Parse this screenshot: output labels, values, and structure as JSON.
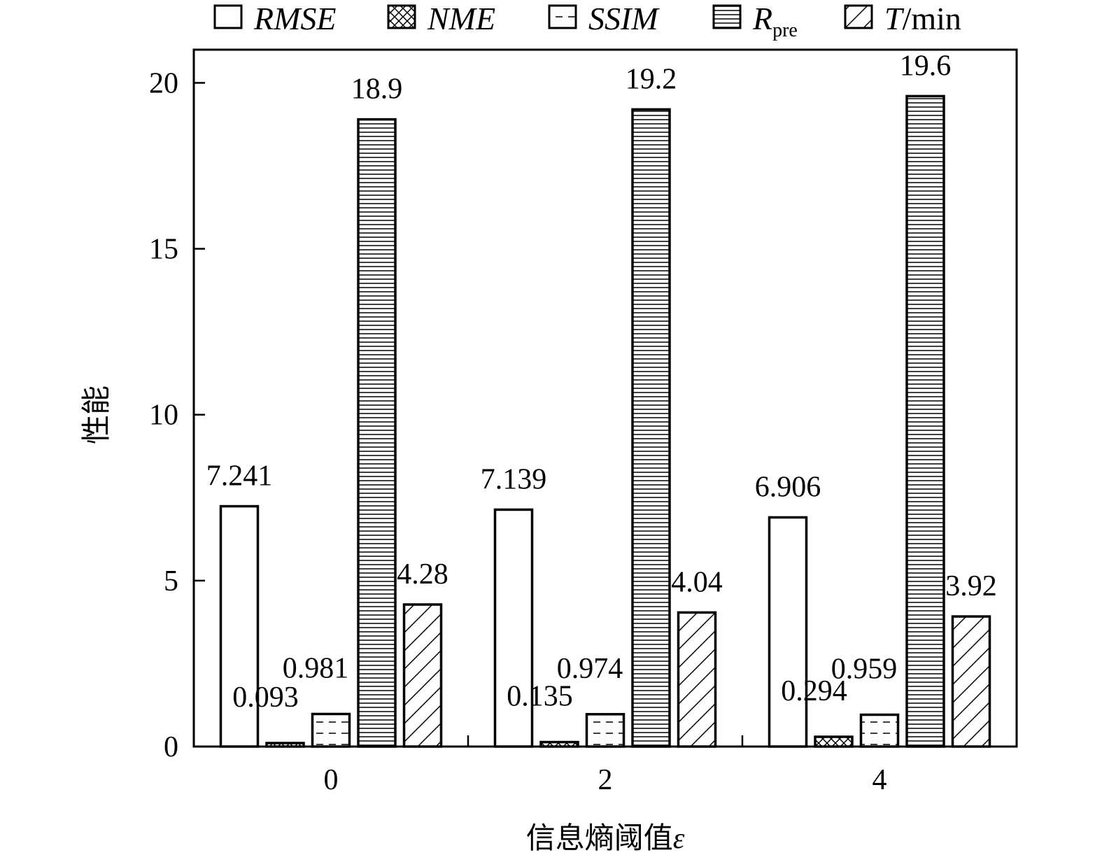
{
  "chart_data": {
    "type": "bar",
    "categories": [
      "0",
      "2",
      "4"
    ],
    "xlabel": "信息熵阈值",
    "xlabel_symbol": "ε",
    "ylabel": "性能",
    "ylim": [
      0,
      21
    ],
    "yticks": [
      0,
      5,
      10,
      15,
      20
    ],
    "grid": false,
    "legend_position": "top",
    "series": [
      {
        "name": "RMSE",
        "pattern": "none",
        "values": [
          7.241,
          7.139,
          6.906
        ],
        "labels": [
          "7.241",
          "7.139",
          "6.906"
        ]
      },
      {
        "name": "NME",
        "pattern": "crosshatch",
        "values": [
          0.093,
          0.135,
          0.294
        ],
        "labels": [
          "0.093",
          "0.135",
          "0.294"
        ]
      },
      {
        "name": "SSIM",
        "pattern": "dashed-horizontal",
        "values": [
          0.981,
          0.974,
          0.959
        ],
        "labels": [
          "0.981",
          "0.974",
          "0.959"
        ]
      },
      {
        "name": "R",
        "name_subscript": "pre",
        "pattern": "horizontal",
        "values": [
          18.9,
          19.2,
          19.6
        ],
        "labels": [
          "18.9",
          "19.2",
          "19.6"
        ]
      },
      {
        "name": "T",
        "name_suffix": "/min",
        "pattern": "diagonal",
        "values": [
          4.28,
          4.04,
          3.92
        ],
        "labels": [
          "4.28",
          "4.04",
          "3.92"
        ]
      }
    ]
  }
}
